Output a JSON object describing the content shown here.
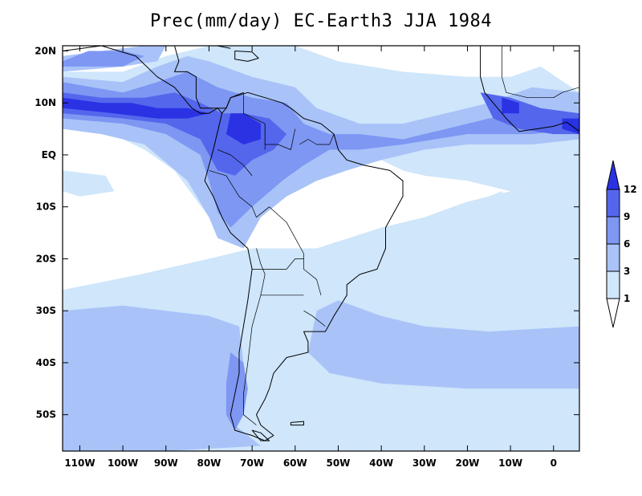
{
  "title": "Prec(mm/day) EC-Earth3 JJA 1984",
  "map": {
    "lon_range": [
      -114,
      6
    ],
    "lat_range": [
      -57,
      21
    ],
    "lat_ticks": [
      {
        "value": 20,
        "label": "20N"
      },
      {
        "value": 10,
        "label": "10N"
      },
      {
        "value": 0,
        "label": "EQ"
      },
      {
        "value": -10,
        "label": "10S"
      },
      {
        "value": -20,
        "label": "20S"
      },
      {
        "value": -30,
        "label": "30S"
      },
      {
        "value": -40,
        "label": "40S"
      },
      {
        "value": -50,
        "label": "50S"
      }
    ],
    "lon_ticks": [
      {
        "value": -110,
        "label": "110W"
      },
      {
        "value": -100,
        "label": "100W"
      },
      {
        "value": -90,
        "label": "90W"
      },
      {
        "value": -80,
        "label": "80W"
      },
      {
        "value": -70,
        "label": "70W"
      },
      {
        "value": -60,
        "label": "60W"
      },
      {
        "value": -50,
        "label": "50W"
      },
      {
        "value": -40,
        "label": "40W"
      },
      {
        "value": -30,
        "label": "30W"
      },
      {
        "value": -20,
        "label": "20W"
      },
      {
        "value": -10,
        "label": "10W"
      },
      {
        "value": 0,
        "label": "0"
      }
    ]
  },
  "colorbar": {
    "levels": [
      {
        "label": "1"
      },
      {
        "label": "3"
      },
      {
        "label": "6"
      },
      {
        "label": "9"
      },
      {
        "label": "12"
      }
    ],
    "colors": [
      "#ffffff",
      "#cfe6fb",
      "#a9c3f8",
      "#7e97f3",
      "#5466ec",
      "#2a32e4"
    ]
  }
}
